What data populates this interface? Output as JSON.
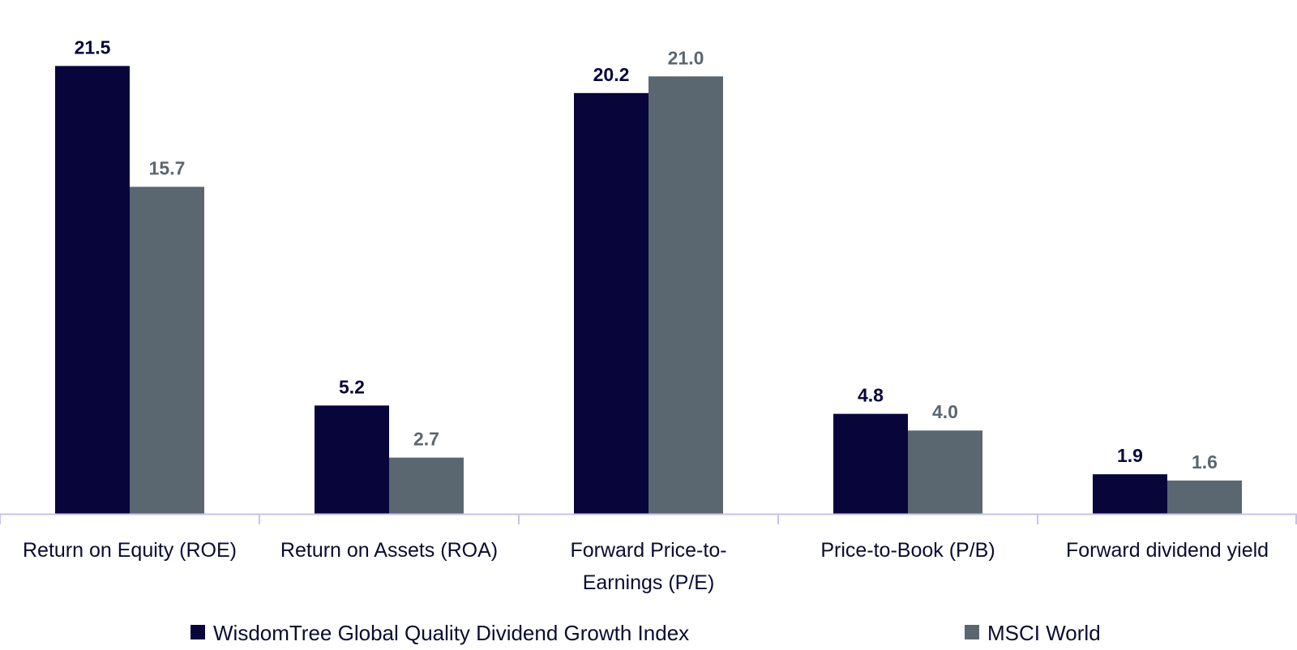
{
  "chart_data": {
    "type": "bar",
    "categories": [
      [
        "Return on Equity (ROE)"
      ],
      [
        "Return on Assets (ROA)"
      ],
      [
        "Forward Price-to-",
        "Earnings (P/E)"
      ],
      [
        "Price-to-Book (P/B)"
      ],
      [
        "Forward dividend yield"
      ]
    ],
    "series": [
      {
        "name": "WisdomTree Global Quality Dividend Growth Index",
        "values": [
          21.5,
          5.2,
          20.2,
          4.8,
          1.9
        ],
        "labels": [
          "21.5",
          "5.2",
          "20.2",
          "4.8",
          "1.9"
        ],
        "color": "#07053a"
      },
      {
        "name": "MSCI World",
        "values": [
          15.7,
          2.7,
          21.0,
          4.0,
          1.6
        ],
        "labels": [
          "15.7",
          "2.7",
          "21.0",
          "4.0",
          "1.6"
        ],
        "color": "#5b6770"
      }
    ],
    "ylim": [
      0,
      23.5
    ],
    "grid": false,
    "legend_position": "bottom",
    "axis_color": "#c7c3e6"
  }
}
